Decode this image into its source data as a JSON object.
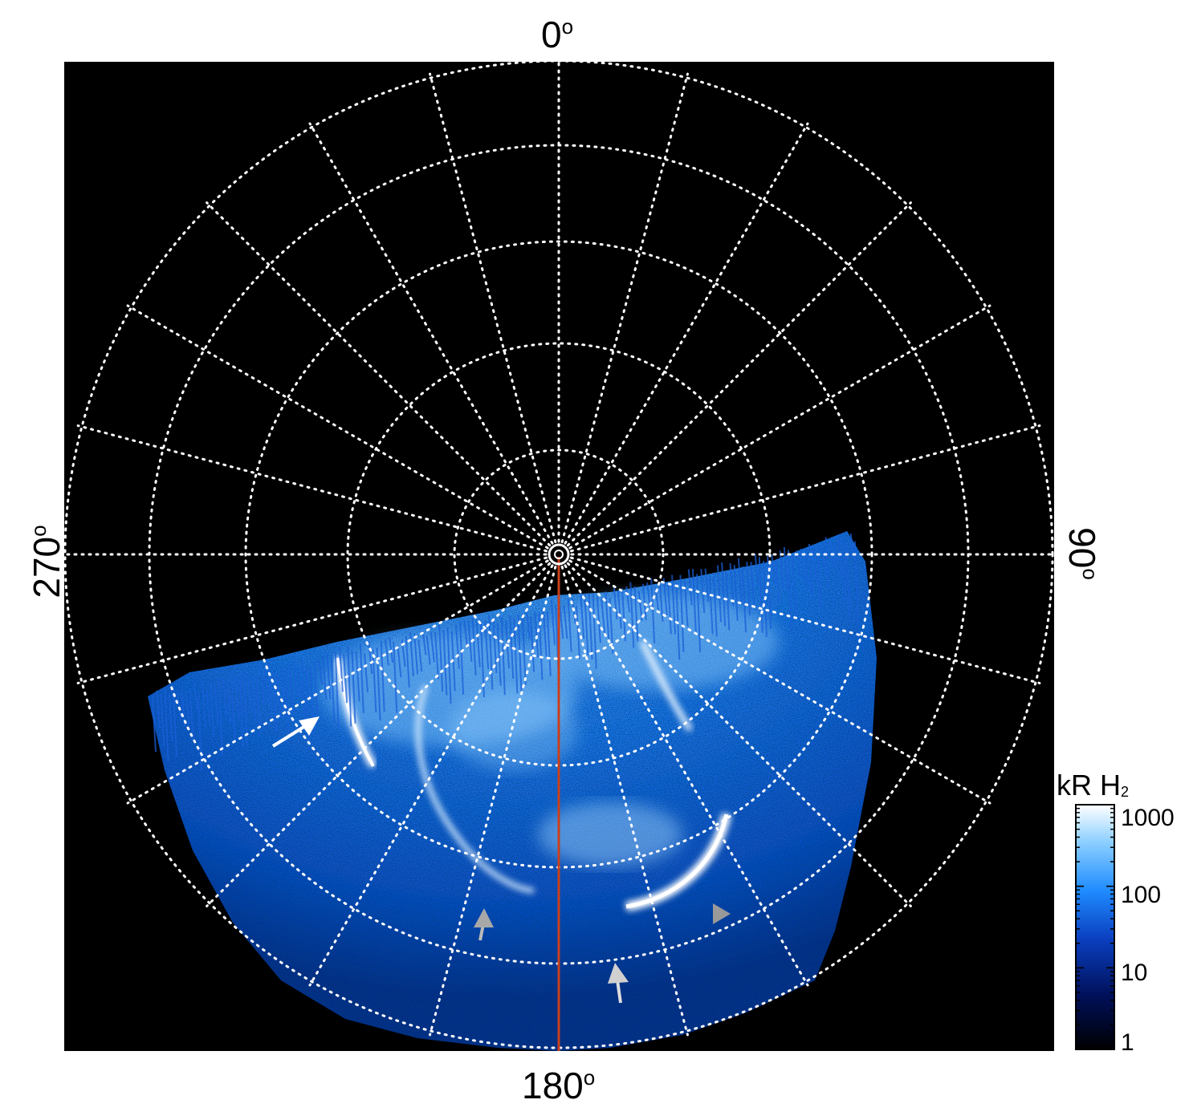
{
  "labels": {
    "top": "0",
    "bottom": "180",
    "left": "270",
    "right": "90",
    "degree": "o"
  },
  "colorbar": {
    "title": "kR H",
    "subscript": "2",
    "ticks": [
      "1000",
      "100",
      "10",
      "1"
    ],
    "scale": "log",
    "range": [
      1,
      1000
    ],
    "colors": [
      "#000000",
      "#00105a",
      "#0a3fbf",
      "#1f8cff",
      "#8ed0ff",
      "#ffffff"
    ]
  },
  "image": {
    "background": "#000000",
    "grid_color": "#ffffff",
    "meridian_color": "#c8401c",
    "aurora_colors": [
      "#0a2a8a",
      "#1560e0",
      "#3a9cff",
      "#bfe4ff"
    ],
    "annotations": [
      {
        "name": "white-arrow",
        "color": "#ffffff"
      },
      {
        "name": "gray-arrow-left",
        "color": "#aaaaaa"
      },
      {
        "name": "gray-arrow-bottom",
        "color": "#cccccc"
      },
      {
        "name": "gray-triangle",
        "color": "#999999"
      }
    ]
  }
}
